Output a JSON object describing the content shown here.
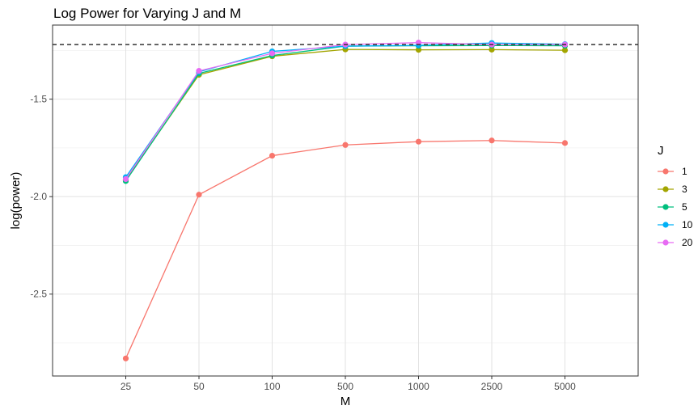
{
  "chart_data": {
    "type": "line",
    "title": "Log Power for Varying J and M",
    "xlabel": "M",
    "ylabel": "log(power)",
    "categories": [
      "25",
      "50",
      "100",
      "500",
      "1000",
      "2500",
      "5000"
    ],
    "ylim": [
      -2.92,
      -1.12
    ],
    "yticks": [
      -1.5,
      -2.0,
      -2.5
    ],
    "ytick_labels": [
      "-1.5",
      "-2.0",
      "-2.5"
    ],
    "reference_line": {
      "y": -1.22,
      "style": "dashed",
      "color": "#333333"
    },
    "grid": true,
    "legend": {
      "title": "J",
      "position": "right"
    },
    "series": [
      {
        "name": "1",
        "color": "#F8766D",
        "values": [
          -2.83,
          -1.99,
          -1.79,
          -1.735,
          -1.718,
          -1.712,
          -1.725
        ]
      },
      {
        "name": "3",
        "color": "#A3A500",
        "values": [
          -1.915,
          -1.375,
          -1.28,
          -1.245,
          -1.247,
          -1.246,
          -1.249
        ]
      },
      {
        "name": "5",
        "color": "#00BF7D",
        "values": [
          -1.92,
          -1.368,
          -1.276,
          -1.228,
          -1.226,
          -1.225,
          -1.226
        ]
      },
      {
        "name": "10",
        "color": "#00B0F6",
        "values": [
          -1.9,
          -1.36,
          -1.255,
          -1.228,
          -1.224,
          -1.212,
          -1.218
        ]
      },
      {
        "name": "20",
        "color": "#E76BF3",
        "values": [
          -1.91,
          -1.355,
          -1.265,
          -1.22,
          -1.21,
          -1.22,
          -1.22
        ]
      }
    ]
  }
}
